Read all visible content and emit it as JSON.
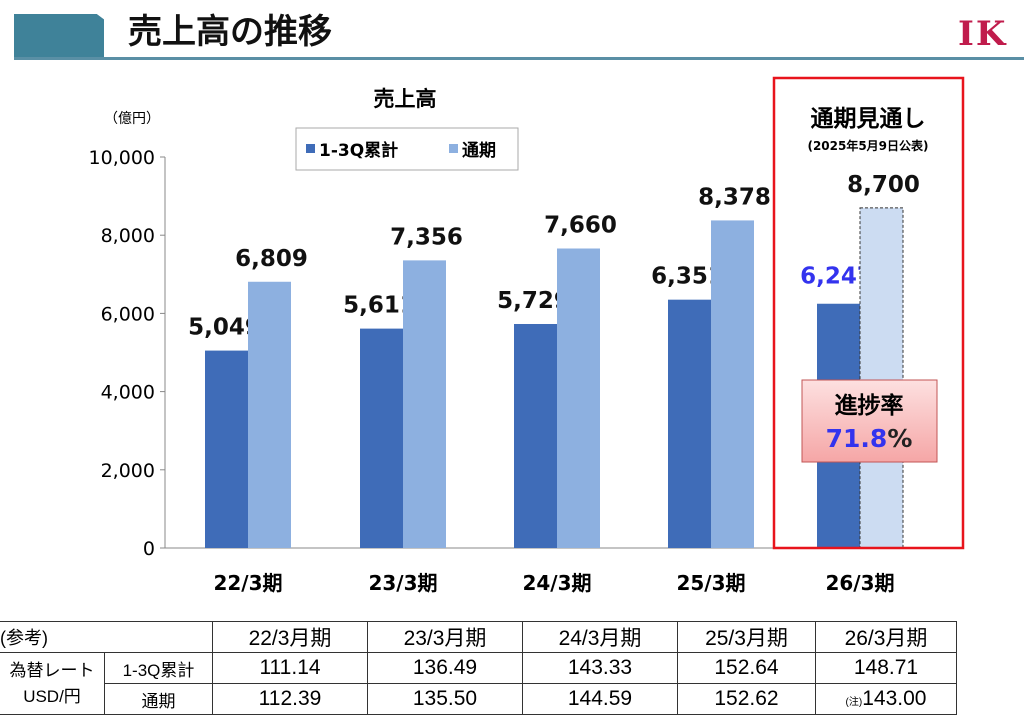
{
  "header": {
    "title": "売上高の推移",
    "logo": "IK"
  },
  "chart_data": {
    "type": "bar",
    "title": "売上高",
    "ylabel": "（億円）",
    "ylim": [
      0,
      10000
    ],
    "yticks": [
      "0",
      "2,000",
      "4,000",
      "6,000",
      "8,000",
      "10,000"
    ],
    "ytick_values": [
      0,
      2000,
      4000,
      6000,
      8000,
      10000
    ],
    "categories": [
      "22/3期",
      "23/3期",
      "24/3期",
      "25/3期",
      "26/3期"
    ],
    "legend": "top-center",
    "series": [
      {
        "name": "1-3Q累計",
        "color": "#3f6cb8",
        "values": [
          5049,
          5611,
          5729,
          6351,
          6247
        ],
        "labels": [
          "5,049",
          "5,611",
          "5,729",
          "6,351",
          "6,247"
        ]
      },
      {
        "name": "通期",
        "color": "#8db0e0",
        "values": [
          6809,
          7356,
          7660,
          8378,
          8700
        ],
        "labels": [
          "6,809",
          "7,356",
          "7,660",
          "8,378",
          "8,700"
        ]
      }
    ],
    "forecast": {
      "title": "通期見通し",
      "note": "(2025年5月9日公表)",
      "progress_label": "進捗率",
      "progress_value": "71.8",
      "progress_unit": "%",
      "label_color": "#3333ee",
      "forecast_fill": "#ccdcf2",
      "box_color": "#e8141c"
    }
  },
  "table": {
    "corner": "(参考)",
    "headers": [
      "22/3月期",
      "23/3月期",
      "24/3月期",
      "25/3月期",
      "26/3月期"
    ],
    "row_group": [
      "為替レート",
      "USD/円"
    ],
    "rows": [
      {
        "label": "1-3Q累計",
        "values": [
          "111.14",
          "136.49",
          "143.33",
          "152.64",
          "148.71"
        ]
      },
      {
        "label": "通期",
        "note": "(注)",
        "values": [
          "112.39",
          "135.50",
          "144.59",
          "152.62",
          "143.00"
        ]
      }
    ]
  }
}
